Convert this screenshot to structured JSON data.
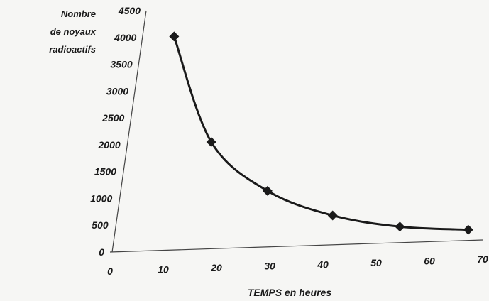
{
  "chart_data": {
    "type": "line",
    "ylabel_lines": [
      "Nombre",
      "de noyaux",
      "radioactifs"
    ],
    "xlabel": "TEMPS en heures",
    "xlim": [
      0,
      70
    ],
    "ylim": [
      0,
      4500
    ],
    "x_ticks": [
      "0",
      "10",
      "20",
      "30",
      "40",
      "50",
      "60",
      "70"
    ],
    "y_ticks": [
      "0",
      "500",
      "1000",
      "1500",
      "2000",
      "2500",
      "3000",
      "3500",
      "4000",
      "4500"
    ],
    "series": [
      {
        "x": [
          6,
          16,
          28,
          41,
          54,
          67
        ],
        "y": [
          4000,
          2000,
          1050,
          550,
          300,
          200
        ],
        "marker": "diamond",
        "color": "#1a1a1a",
        "smooth": true
      }
    ],
    "grid": false
  }
}
